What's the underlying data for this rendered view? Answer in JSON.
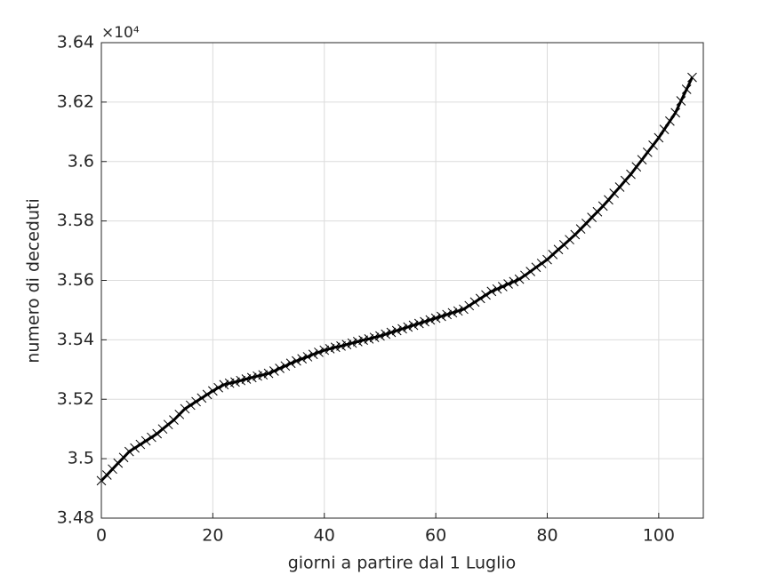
{
  "chart_data": {
    "type": "line",
    "xlabel": "giorni a partire dal 1 Luglio",
    "ylabel": "numero di deceduti",
    "y_multiplier": "×10⁴",
    "xlim": [
      0,
      108
    ],
    "ylim": [
      3.48,
      3.64
    ],
    "xticks": [
      0,
      20,
      40,
      60,
      80,
      100
    ],
    "yticks": [
      3.48,
      3.5,
      3.52,
      3.54,
      3.56,
      3.58,
      3.6,
      3.62,
      3.64
    ],
    "grid": true,
    "marker": "x",
    "x": [
      0,
      1,
      2,
      3,
      4,
      5,
      6,
      7,
      8,
      9,
      10,
      11,
      12,
      13,
      14,
      15,
      16,
      17,
      18,
      19,
      20,
      21,
      22,
      23,
      24,
      25,
      26,
      27,
      28,
      29,
      30,
      31,
      32,
      33,
      34,
      35,
      36,
      37,
      38,
      39,
      40,
      41,
      42,
      43,
      44,
      45,
      46,
      47,
      48,
      49,
      50,
      51,
      52,
      53,
      54,
      55,
      56,
      57,
      58,
      59,
      60,
      61,
      62,
      63,
      64,
      65,
      66,
      67,
      68,
      69,
      70,
      71,
      72,
      73,
      74,
      75,
      76,
      77,
      78,
      79,
      80,
      81,
      82,
      83,
      84,
      85,
      86,
      87,
      88,
      89,
      90,
      91,
      92,
      93,
      94,
      95,
      96,
      97,
      98,
      99,
      100,
      101,
      102,
      103,
      104,
      105,
      106
    ],
    "series": [
      {
        "color": "#000000",
        "values": [
          3.4926,
          3.4945,
          3.4965,
          3.4985,
          3.5004,
          3.5024,
          3.5036,
          3.5048,
          3.506,
          3.5072,
          3.5084,
          3.51,
          3.5115,
          3.513,
          3.5149,
          3.5168,
          3.518,
          3.5192,
          3.5204,
          3.5216,
          3.5228,
          3.5239,
          3.5249,
          3.5254,
          3.5258,
          3.5263,
          3.5268,
          3.5273,
          3.5278,
          3.5282,
          3.5287,
          3.5295,
          3.5304,
          3.5312,
          3.5321,
          3.5329,
          3.5336,
          3.5343,
          3.5351,
          3.5358,
          3.5365,
          3.537,
          3.5375,
          3.5379,
          3.5384,
          3.5389,
          3.5394,
          3.5399,
          3.5403,
          3.5408,
          3.5413,
          3.5419,
          3.5425,
          3.5431,
          3.5437,
          3.5443,
          3.5449,
          3.5455,
          3.5461,
          3.5467,
          3.5473,
          3.5479,
          3.5485,
          3.5491,
          3.5497,
          3.5503,
          3.5515,
          3.5527,
          3.5539,
          3.5551,
          3.5563,
          3.5571,
          3.5579,
          3.5588,
          3.5596,
          3.5604,
          3.5617,
          3.563,
          3.5644,
          3.5657,
          3.567,
          3.5687,
          3.5704,
          3.572,
          3.5737,
          3.5754,
          3.5773,
          3.5792,
          3.5812,
          3.5831,
          3.585,
          3.5871,
          3.5893,
          3.5914,
          3.5936,
          3.5957,
          3.5982,
          3.6006,
          3.6031,
          3.6055,
          3.608,
          3.6108,
          3.6136,
          3.6164,
          3.6204,
          3.6243,
          3.6283
        ]
      }
    ]
  }
}
